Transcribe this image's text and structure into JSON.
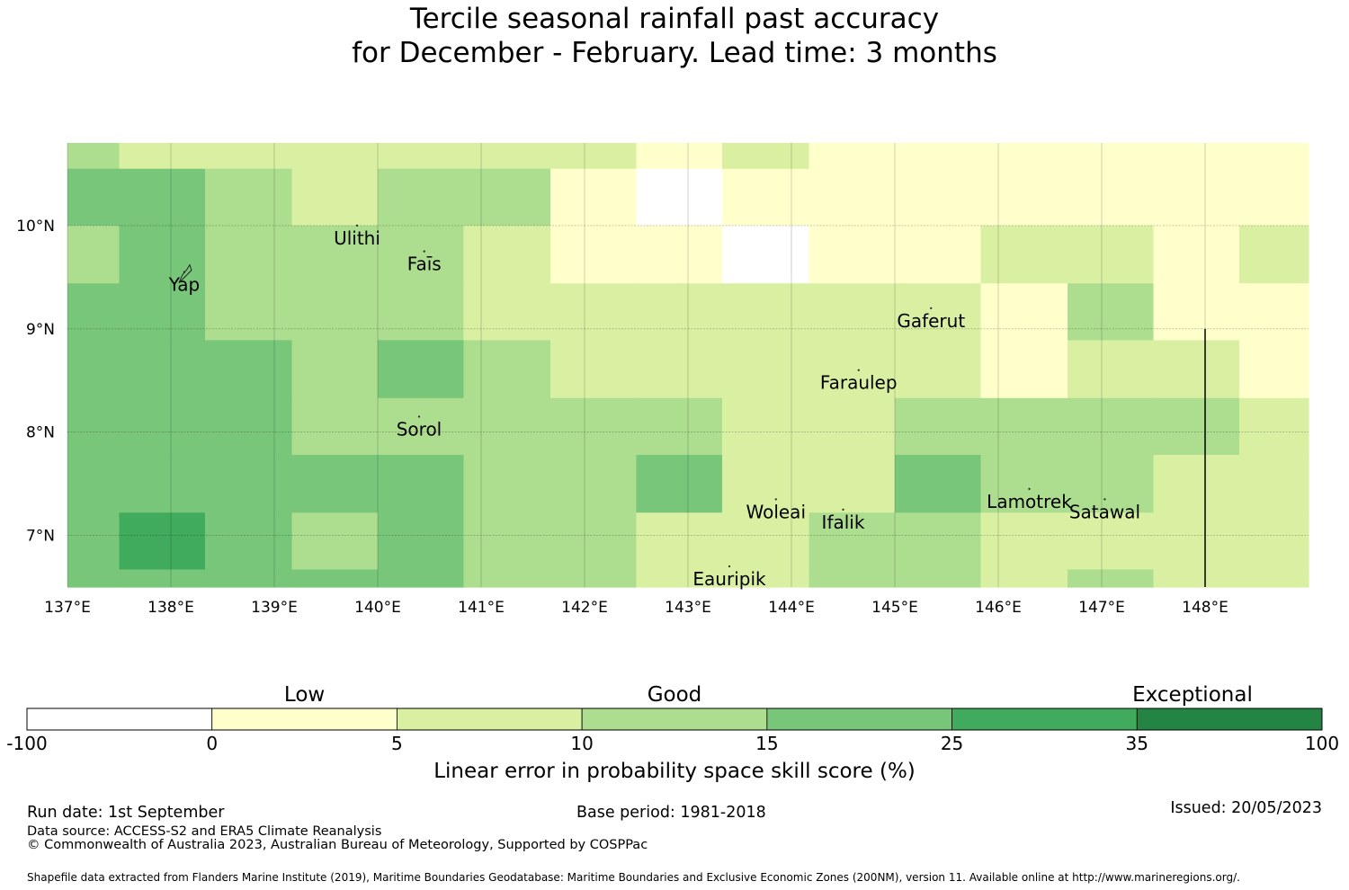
{
  "title": {
    "line1": "Tercile seasonal rainfall past accuracy",
    "line2": "for December - February. Lead time: 3 months"
  },
  "map": {
    "lon_min": 137.0,
    "lon_max": 149.0,
    "lat_min": 6.5,
    "lat_max": 10.8,
    "lon_ticks": [
      137,
      138,
      139,
      140,
      141,
      142,
      143,
      144,
      145,
      146,
      147,
      148
    ],
    "lon_tick_labels": [
      "137°E",
      "138°E",
      "139°E",
      "140°E",
      "141°E",
      "142°E",
      "143°E",
      "144°E",
      "145°E",
      "146°E",
      "147°E",
      "148°E"
    ],
    "lat_ticks": [
      7,
      8,
      9,
      10
    ],
    "lat_tick_labels": [
      "7°N",
      "8°N",
      "9°N",
      "10°N"
    ],
    "col_edges": [
      137.0,
      137.5,
      138.33,
      139.17,
      140.0,
      140.83,
      141.67,
      142.5,
      143.33,
      144.17,
      145.0,
      145.83,
      146.67,
      147.5,
      148.33,
      149.0
    ],
    "row_edges": [
      10.8,
      10.55,
      10.0,
      9.44,
      8.89,
      8.33,
      7.78,
      7.22,
      6.67,
      6.5
    ],
    "color_grid": [
      [
        3,
        2,
        2,
        2,
        2,
        2,
        2,
        1,
        2,
        1,
        1,
        1,
        1,
        1,
        1
      ],
      [
        4,
        4,
        3,
        2,
        3,
        3,
        1,
        0,
        1,
        1,
        1,
        1,
        1,
        1,
        1
      ],
      [
        3,
        4,
        3,
        3,
        3,
        2,
        1,
        1,
        0,
        1,
        1,
        2,
        2,
        1,
        2
      ],
      [
        4,
        4,
        3,
        3,
        3,
        2,
        2,
        2,
        2,
        2,
        2,
        1,
        3,
        1,
        1
      ],
      [
        4,
        4,
        4,
        3,
        4,
        3,
        2,
        2,
        2,
        2,
        2,
        1,
        2,
        2,
        1
      ],
      [
        4,
        4,
        4,
        3,
        3,
        3,
        3,
        3,
        2,
        2,
        3,
        3,
        3,
        3,
        2
      ],
      [
        4,
        4,
        4,
        4,
        4,
        3,
        3,
        4,
        2,
        2,
        4,
        3,
        3,
        2,
        2
      ],
      [
        4,
        5,
        4,
        3,
        4,
        3,
        3,
        2,
        2,
        3,
        3,
        2,
        2,
        2,
        2
      ],
      [
        4,
        4,
        4,
        4,
        4,
        3,
        3,
        2,
        2,
        3,
        3,
        2,
        3,
        2,
        2
      ]
    ],
    "boundary_line": {
      "lon": 148.0,
      "lat_from": 6.5,
      "lat_to": 9.0
    },
    "islands": [
      {
        "name": "Ulithi",
        "lon": 139.8,
        "lat": 10.0
      },
      {
        "name": "Faīs",
        "lon": 140.45,
        "lat": 9.75
      },
      {
        "name": "Yap",
        "lon": 138.13,
        "lat": 9.55
      },
      {
        "name": "Gaferut",
        "lon": 145.35,
        "lat": 9.2
      },
      {
        "name": "Faraulep",
        "lon": 144.65,
        "lat": 8.6
      },
      {
        "name": "Sorol",
        "lon": 140.4,
        "lat": 8.15
      },
      {
        "name": "Woleai",
        "lon": 143.85,
        "lat": 7.35
      },
      {
        "name": "Ifalik",
        "lon": 144.5,
        "lat": 7.25
      },
      {
        "name": "Lamotrek",
        "lon": 146.3,
        "lat": 7.45
      },
      {
        "name": "Satawal",
        "lon": 147.03,
        "lat": 7.35
      },
      {
        "name": "Eauripik",
        "lon": 143.4,
        "lat": 6.7
      }
    ]
  },
  "colorbar": {
    "ticks": [
      "-100",
      "0",
      "5",
      "10",
      "15",
      "25",
      "35",
      "100"
    ],
    "colors": [
      "#ffffff",
      "#ffffcc",
      "#d9f0a3",
      "#addd8e",
      "#78c679",
      "#41ab5d",
      "#238443"
    ],
    "categories": [
      {
        "name": "Low",
        "position": 1.5
      },
      {
        "name": "Good",
        "position": 3.5
      },
      {
        "name": "Exceptional",
        "position": 6.3
      }
    ],
    "label": "Linear error in probability space skill score (%)"
  },
  "footer": {
    "run_date": "Run date: 1st September",
    "base_period": "Base period: 1981-2018",
    "issued": "Issued: 20/05/2023",
    "data_source": "Data source: ACCESS-S2 and ERA5 Climate Reanalysis",
    "copyright": "© Commonwealth of Australia 2023, Australian Bureau of Meteorology, Supported by COSPPac",
    "shapefile": "Shapefile data extracted from Flanders Marine Institute (2019), Maritime Boundaries Geodatabase: Maritime Boundaries and Exclusive Economic Zones (200NM), version 11. Available online at http://www.marineregions.org/."
  }
}
